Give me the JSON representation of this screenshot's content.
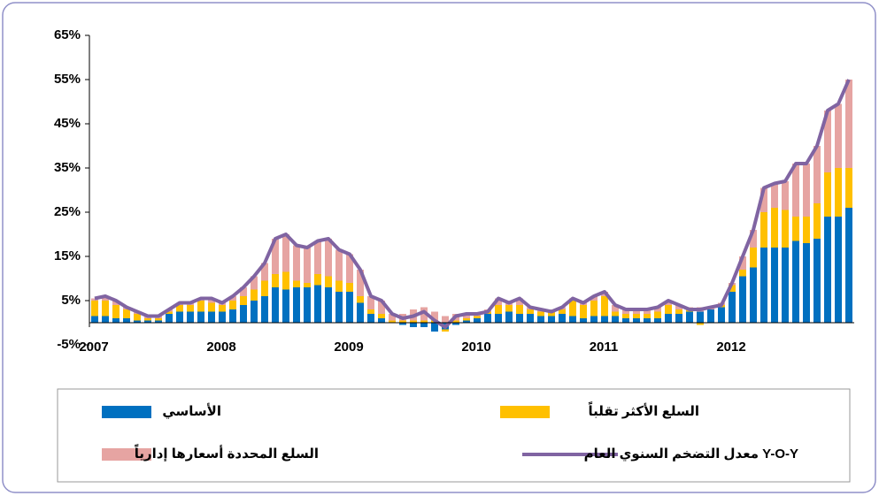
{
  "chart_data": {
    "type": "bar",
    "stacked": true,
    "categories": [
      "2007",
      null,
      null,
      null,
      null,
      null,
      null,
      null,
      null,
      null,
      null,
      null,
      "2008",
      null,
      null,
      null,
      null,
      null,
      null,
      null,
      null,
      null,
      null,
      null,
      "2009",
      null,
      null,
      null,
      null,
      null,
      null,
      null,
      null,
      null,
      null,
      null,
      "2010",
      null,
      null,
      null,
      null,
      null,
      null,
      null,
      null,
      null,
      null,
      null,
      "2011",
      null,
      null,
      null,
      null,
      null,
      null,
      null,
      null,
      null,
      null,
      null,
      "2012",
      null,
      null,
      null,
      null,
      null,
      null,
      null,
      null,
      null,
      null,
      null
    ],
    "series": [
      {
        "name": "الأساسي",
        "color": "#0070c0",
        "type": "bar",
        "values": [
          1.5,
          1.5,
          1,
          1,
          0.5,
          0.5,
          0.5,
          2,
          2.5,
          2.5,
          2.5,
          2.5,
          2.5,
          3,
          4,
          5,
          6,
          8,
          7.5,
          8,
          8,
          8.5,
          8,
          7,
          7,
          4.5,
          2,
          1,
          0,
          -0.5,
          -1,
          -1,
          -2,
          -1.5,
          -0.5,
          0.5,
          1,
          2,
          2,
          2.5,
          2,
          2,
          1.5,
          1.5,
          2,
          1.5,
          1,
          1.5,
          1.5,
          1.5,
          1,
          1,
          1,
          1,
          2,
          2,
          2.5,
          2.5,
          3,
          3.5,
          7,
          10.5,
          12.5,
          17,
          17,
          17,
          18.5,
          18,
          19,
          24,
          24,
          26
        ]
      },
      {
        "name": "السلع الأكثر تقلباً",
        "color": "#ffc000",
        "type": "bar",
        "values": [
          3.5,
          3.5,
          3,
          2,
          1.5,
          0.5,
          0.5,
          0.5,
          1.5,
          1.5,
          2.5,
          2,
          1.5,
          2,
          2,
          2.5,
          3.5,
          3,
          4,
          1.5,
          1,
          2.5,
          2.5,
          2.5,
          2,
          1.5,
          1,
          1,
          0.5,
          0.5,
          0.5,
          0.5,
          0.5,
          -0.5,
          0.5,
          0.5,
          0.5,
          0.5,
          2,
          1.5,
          2,
          1,
          1,
          1,
          1,
          3.5,
          3,
          3.5,
          4.5,
          1,
          1,
          1,
          1,
          1.5,
          2,
          1,
          0.5,
          -0.5,
          0,
          0.5,
          1.5,
          1.5,
          4.5,
          8,
          9,
          8.5,
          5.5,
          6,
          8,
          10,
          11,
          9
        ]
      },
      {
        "name": "السلع المحددة أسعارها إدارياً",
        "color": "#e6a4a2",
        "type": "bar",
        "values": [
          0.5,
          1,
          1,
          0.5,
          0.5,
          0.5,
          0.5,
          0.5,
          0.5,
          0.5,
          0.5,
          1,
          0.5,
          1,
          2,
          3,
          4,
          8,
          8.5,
          8,
          8,
          7.5,
          8.5,
          7,
          6.5,
          6,
          3,
          3,
          1.5,
          1.5,
          2.5,
          3,
          2,
          1.5,
          1.5,
          1,
          0.5,
          0.5,
          1.5,
          0.5,
          1.5,
          0.5,
          0.5,
          0.5,
          0.5,
          0.5,
          0.5,
          1,
          1,
          1.5,
          1,
          1,
          1,
          1,
          1,
          1,
          0.5,
          1,
          0.5,
          0.5,
          0.5,
          3,
          4,
          5.5,
          5.5,
          6.5,
          12,
          12,
          13,
          14,
          14.5,
          20
        ]
      },
      {
        "name": "معدل التضخم السنوي العام Y-O-Y",
        "color": "#8064a2",
        "type": "line",
        "values": [
          5.5,
          6,
          5,
          3.5,
          2.5,
          1.5,
          1.5,
          3,
          4.5,
          4.5,
          5.5,
          5.5,
          4.5,
          6,
          8,
          10.5,
          13.5,
          19,
          20,
          17.5,
          17,
          18.5,
          19,
          16.5,
          15.5,
          12,
          6,
          5,
          2,
          1,
          1.5,
          2.5,
          0.5,
          -1,
          1.5,
          2,
          2,
          2.5,
          5.5,
          4.5,
          5.5,
          3.5,
          3,
          2.5,
          3.5,
          5.5,
          4.5,
          6,
          7,
          4,
          3,
          3,
          3,
          3.5,
          5,
          4,
          3,
          3,
          3.5,
          4,
          9,
          15,
          21,
          30.5,
          31.5,
          32,
          36,
          36,
          40,
          48,
          49.5,
          55
        ]
      }
    ],
    "ylim": [
      -5,
      65
    ],
    "yticks": [
      {
        "value": -5,
        "label": "-5%"
      },
      {
        "value": 5,
        "label": "5%"
      },
      {
        "value": 15,
        "label": "15%"
      },
      {
        "value": 25,
        "label": "25%"
      },
      {
        "value": 35,
        "label": "35%"
      },
      {
        "value": 45,
        "label": "45%"
      },
      {
        "value": 55,
        "label": "55%"
      },
      {
        "value": 65,
        "label": "65%"
      }
    ],
    "legend": "bottom"
  }
}
